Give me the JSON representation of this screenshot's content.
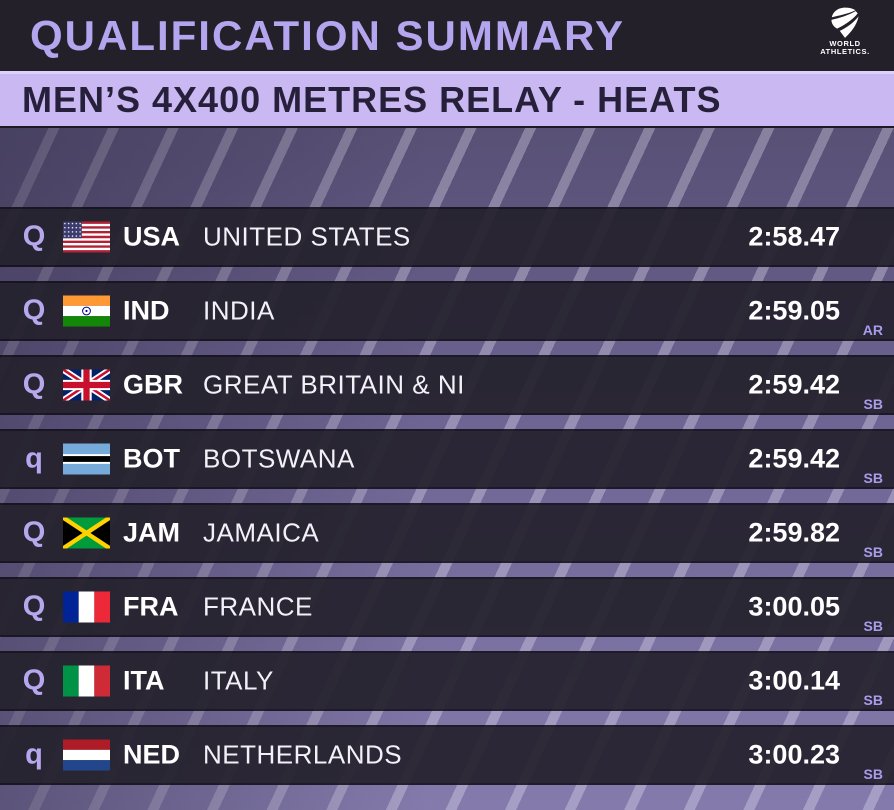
{
  "header": {
    "title": "QUALIFICATION SUMMARY",
    "logo_line1": "WORLD",
    "logo_line2": "ATHLETICS."
  },
  "subheader": {
    "title": "MEN’S 4X400 METRES RELAY - HEATS"
  },
  "table": {
    "rows": [
      {
        "qual": "Q",
        "flag_icon": "usa-flag",
        "code": "USA",
        "country": "UNITED STATES",
        "time": "2:58.47",
        "note": ""
      },
      {
        "qual": "Q",
        "flag_icon": "india-flag",
        "code": "IND",
        "country": "INDIA",
        "time": "2:59.05",
        "note": "AR"
      },
      {
        "qual": "Q",
        "flag_icon": "gbr-flag",
        "code": "GBR",
        "country": "GREAT BRITAIN & NI",
        "time": "2:59.42",
        "note": "SB"
      },
      {
        "qual": "q",
        "flag_icon": "botswana-flag",
        "code": "BOT",
        "country": "BOTSWANA",
        "time": "2:59.42",
        "note": "SB"
      },
      {
        "qual": "Q",
        "flag_icon": "jamaica-flag",
        "code": "JAM",
        "country": "JAMAICA",
        "time": "2:59.82",
        "note": "SB"
      },
      {
        "qual": "Q",
        "flag_icon": "france-flag",
        "code": "FRA",
        "country": "FRANCE",
        "time": "3:00.05",
        "note": "SB"
      },
      {
        "qual": "Q",
        "flag_icon": "italy-flag",
        "code": "ITA",
        "country": "ITALY",
        "time": "3:00.14",
        "note": "SB"
      },
      {
        "qual": "q",
        "flag_icon": "netherlands-flag",
        "code": "NED",
        "country": "NETHERLANDS",
        "time": "3:00.23",
        "note": "SB"
      }
    ]
  },
  "colors": {
    "accent_purple": "#b5a4ee",
    "subheader_bg": "#c9b8f1",
    "header_bg": "#242029",
    "row_bg": "#25212d",
    "background_purple": "#6f6695",
    "badge_purple": "#a99cea"
  }
}
